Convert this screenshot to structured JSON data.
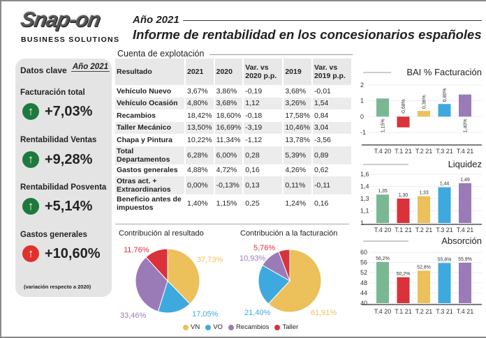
{
  "header": {
    "logo": "Snap-on",
    "subtitle_logo": "BUSINESS SOLUTIONS",
    "year": "Año 2021",
    "title": "Informe de rentabilidad en los concesionarios españoles"
  },
  "key_data": {
    "title": "Datos clave",
    "year": "Año 2021",
    "items": [
      {
        "label": "Facturación total",
        "value": "+7,03%",
        "direction": "up",
        "color": "#1e7a3c"
      },
      {
        "label": "Rentabilidad Ventas",
        "value": "+9,28%",
        "direction": "up",
        "color": "#1e7a3c"
      },
      {
        "label": "Rentabilidad Posventa",
        "value": "+5,14%",
        "direction": "up",
        "color": "#1e7a3c"
      },
      {
        "label": "Gastos generales",
        "value": "+10,60%",
        "direction": "up",
        "color": "#e0312a"
      }
    ],
    "note": "(variación respecto a 2020)"
  },
  "income_statement": {
    "title": "Cuenta de explotación",
    "columns": [
      "Resultado",
      "2021",
      "2020",
      "Var. vs 2020 p.p.",
      "2019",
      "Var. vs 2019 p.p."
    ],
    "rows": [
      [
        "Vehículo Nuevo",
        "3,67%",
        "3,86%",
        "-0,19",
        "3,68%",
        "-0,01"
      ],
      [
        "Vehículo Ocasión",
        "4,80%",
        "3,68%",
        "1,12",
        "3,26%",
        "1,54"
      ],
      [
        "Recambios",
        "18,42%",
        "18,60%",
        "-0,18",
        "17,58%",
        "0,84"
      ],
      [
        "Taller Mecánico",
        "13,50%",
        "16,69%",
        "-3,19",
        "10,46%",
        "3,04"
      ],
      [
        "Chapa y Pintura",
        "10,22%",
        "11,34%",
        "-1,12",
        "13,78%",
        "-3,56"
      ],
      [
        "Total Departamentos",
        "6,28%",
        "6,00%",
        "0,28",
        "5,39%",
        "0,89"
      ],
      [
        "Gastos generales",
        "4,88%",
        "4,72%",
        "0,16",
        "4,26%",
        "0,62"
      ],
      [
        "Otras act. + Extraordinarios",
        "0,00%",
        "-0,13%",
        "0,13",
        "0,11%",
        "-0,11"
      ],
      [
        "Beneficio antes de impuestos",
        "1,40%",
        "1,15%",
        "0,25",
        "1,24%",
        "0,16"
      ]
    ]
  },
  "colors": {
    "T.4 20": "#7ab893",
    "T.1 21": "#d9323a",
    "T.2 21": "#ecc05a",
    "T.3 21": "#3ea9df",
    "T.4 21": "#9a7bb8",
    "VN": "#ecc05a",
    "VO": "#3ea9df",
    "Recambios": "#9a7bb8",
    "Taller": "#d9323a"
  },
  "chart_data": [
    {
      "type": "bar",
      "title": "BAI % Facturación",
      "categories": [
        "T.4 20",
        "T.1 21",
        "T.2 21",
        "T.3 21",
        "T.4 21"
      ],
      "values": [
        1.15,
        -0.68,
        0.36,
        0.8,
        1.4
      ],
      "labels": [
        "1,15%",
        "-0,68%",
        "0,36%",
        "0,80%",
        "1,40%"
      ],
      "ylim": [
        -1,
        2
      ],
      "yticks": [
        "2",
        "1",
        "0",
        "-1"
      ],
      "grid": true
    },
    {
      "type": "bar",
      "title": "Liquidez",
      "categories": [
        "T.4 20",
        "T.1 21",
        "T.2 21",
        "T.3 21",
        "T.4 21"
      ],
      "values": [
        1.35,
        1.3,
        1.33,
        1.44,
        1.49
      ],
      "labels": [
        "1,35",
        "1,30",
        "1,33",
        "1,44",
        "1,49"
      ],
      "ylim": [
        1,
        1.6
      ],
      "yticks": [
        "1,6",
        "1,4",
        "1,3",
        "1,1",
        "1"
      ],
      "grid": true
    },
    {
      "type": "bar",
      "title": "Absorción",
      "categories": [
        "T.4 20",
        "T.1 21",
        "T.2 21",
        "T.3 21",
        "T.4 21"
      ],
      "values": [
        56.2,
        50.2,
        52.8,
        55.8,
        55.9
      ],
      "labels": [
        "56,2%",
        "50,2%",
        "52,8%",
        "55,8%",
        "55,9%"
      ],
      "ylim": [
        40,
        60
      ],
      "yticks": [
        "60",
        "56",
        "52",
        "48",
        "44",
        "40"
      ],
      "grid": true
    },
    {
      "type": "pie",
      "title": "Contribución al resultado",
      "categories": [
        "VN",
        "VO",
        "Recambios",
        "Taller"
      ],
      "values": [
        37.73,
        17.05,
        33.46,
        11.76
      ],
      "labels": [
        "37,73%",
        "17,05%",
        "33,46%",
        "11,76%"
      ]
    },
    {
      "type": "pie",
      "title": "Contribución a la facturación",
      "categories": [
        "VN",
        "VO",
        "Recambios",
        "Taller"
      ],
      "values": [
        61.91,
        21.4,
        10.93,
        5.76
      ],
      "labels": [
        "61,91%",
        "21,40%",
        "10,93%",
        "5,76%"
      ]
    }
  ],
  "legend": [
    "VN",
    "VO",
    "Recambios",
    "Taller"
  ]
}
